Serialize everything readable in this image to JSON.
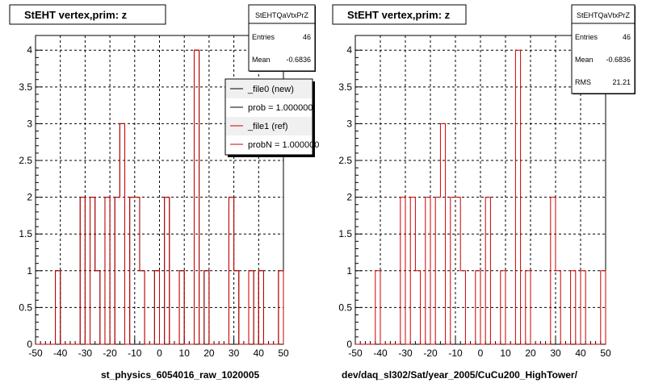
{
  "chart_data": [
    {
      "type": "histogram",
      "title": "StEHT  vertex,prim: z",
      "xlabel": "st_physics_6054016_raw_1020005",
      "ylabel": "",
      "xlim": [
        -50,
        50
      ],
      "ylim": [
        0,
        4.2
      ],
      "xticks": [
        "-50",
        "-40",
        "-30",
        "-20",
        "-10",
        "0",
        "10",
        "20",
        "30",
        "40",
        "50"
      ],
      "yticks": [
        "0",
        "0.5",
        "1",
        "1.5",
        "2",
        "2.5",
        "3",
        "3.5",
        "4"
      ],
      "grid": true,
      "bin_width": 2,
      "bin_edges_start": -50,
      "series": [
        {
          "name": "_file0 (new)",
          "color": "#000000",
          "values": [
            0,
            0,
            0,
            0,
            1,
            0,
            0,
            0,
            0,
            2,
            0,
            2,
            1,
            0,
            2,
            0,
            2,
            3,
            0,
            2,
            2,
            1,
            0,
            0,
            1,
            0,
            2,
            0,
            0,
            1,
            0,
            0,
            4,
            0,
            1,
            0,
            0,
            0,
            0,
            2,
            1,
            0,
            0,
            1,
            0,
            1,
            0,
            0,
            0,
            1
          ]
        },
        {
          "name": "_file1 (ref)",
          "color": "#cc0000",
          "values": [
            0,
            0,
            0,
            0,
            1,
            0,
            0,
            0,
            0,
            2,
            0,
            2,
            1,
            0,
            2,
            0,
            2,
            3,
            0,
            2,
            2,
            1,
            0,
            0,
            1,
            0,
            2,
            0,
            0,
            1,
            0,
            0,
            4,
            0,
            1,
            0,
            0,
            0,
            0,
            2,
            1,
            0,
            0,
            1,
            0,
            1,
            0,
            0,
            0,
            1
          ]
        }
      ],
      "stats": {
        "name": "StEHTQaVtxPrZ",
        "rows": [
          {
            "label": "Entries",
            "value": "46"
          },
          {
            "label": "Mean",
            "value": "-0.6836"
          }
        ]
      },
      "legend": {
        "placement": "top-right",
        "entries": [
          {
            "label": "_file0 (new)",
            "color": "#000000"
          },
          {
            "label": "prob = 1.000000",
            "color": "#000000"
          },
          {
            "label": "_file1 (ref)",
            "color": "#cc0000"
          },
          {
            "label": "probN = 1.000000",
            "color": "#cc0000"
          }
        ]
      }
    },
    {
      "type": "histogram",
      "title": "StEHT  vertex,prim: z",
      "xlabel": "dev/daq_sl302/Sat/year_2005/CuCu200_HighTower/",
      "ylabel": "",
      "xlim": [
        -50,
        50
      ],
      "ylim": [
        0,
        4.2
      ],
      "xticks": [
        "-50",
        "-40",
        "-30",
        "-20",
        "-10",
        "0",
        "10",
        "20",
        "30",
        "40",
        "50"
      ],
      "yticks": [
        "0",
        "0.5",
        "1",
        "1.5",
        "2",
        "2.5",
        "3",
        "3.5",
        "4"
      ],
      "grid": true,
      "bin_width": 2,
      "bin_edges_start": -50,
      "series": [
        {
          "name": "",
          "color": "#cc0000",
          "values": [
            0,
            0,
            0,
            0,
            1,
            0,
            0,
            0,
            0,
            2,
            0,
            2,
            1,
            0,
            2,
            0,
            2,
            3,
            0,
            2,
            2,
            1,
            0,
            0,
            1,
            0,
            2,
            0,
            0,
            1,
            0,
            0,
            4,
            0,
            1,
            0,
            0,
            0,
            0,
            2,
            1,
            0,
            0,
            1,
            0,
            1,
            0,
            0,
            0,
            1
          ]
        }
      ],
      "stats": {
        "name": "StEHTQaVtxPrZ",
        "rows": [
          {
            "label": "Entries",
            "value": "46"
          },
          {
            "label": "Mean",
            "value": "-0.6836"
          },
          {
            "label": "RMS",
            "value": "21.21"
          }
        ]
      }
    }
  ]
}
